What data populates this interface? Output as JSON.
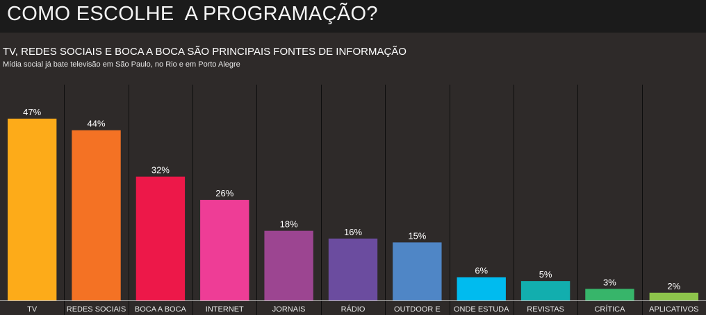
{
  "page": {
    "title": "COMO ESCOLHE  A PROGRAMAÇÃO?"
  },
  "chart_data": {
    "type": "bar",
    "title": "TV, REDES SOCIAIS E BOCA A BOCA SÃO PRINCIPAIS FONTES DE INFORMAÇÃO",
    "subtitle": "Mídia social já bate televisão em São Paulo, no Rio e em Porto Alegre",
    "xlabel": "",
    "ylabel": "",
    "ylim": [
      0,
      47
    ],
    "grid": false,
    "categories": [
      "TV",
      "REDES SOCIAIS",
      "BOCA A BOCA",
      "INTERNET",
      "JORNAIS",
      "RÁDIO",
      "OUTDOOR E",
      "ONDE ESTUDA",
      "REVISTAS",
      "CRÍTICA",
      "APLICATIVOS"
    ],
    "values": [
      47,
      44,
      32,
      26,
      18,
      16,
      15,
      6,
      5,
      3,
      2
    ],
    "value_labels": [
      "47%",
      "44%",
      "32%",
      "26%",
      "18%",
      "16%",
      "15%",
      "6%",
      "5%",
      "3%",
      "2%"
    ],
    "colors": [
      "#fdab19",
      "#f47224",
      "#ed1849",
      "#ee3d96",
      "#9c4591",
      "#6b4c9f",
      "#4f86c6",
      "#00bbef",
      "#12aeae",
      "#37b56a",
      "#8dc54b"
    ]
  }
}
